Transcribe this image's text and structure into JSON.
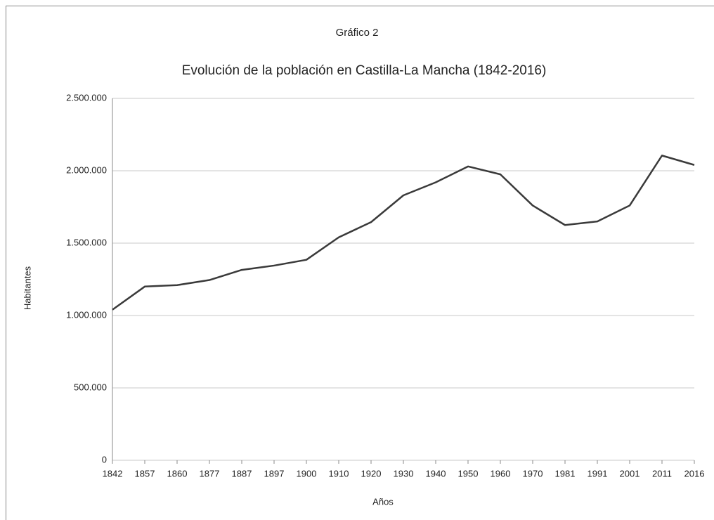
{
  "chart_data": {
    "type": "line",
    "subtitle": "Gráfico 2",
    "title": "Evolución de la población en Castilla-La Mancha (1842-2016)",
    "x_label": "Años",
    "y_label": "Habitantes",
    "categories": [
      "1842",
      "1857",
      "1860",
      "1877",
      "1887",
      "1897",
      "1900",
      "1910",
      "1920",
      "1930",
      "1940",
      "1950",
      "1960",
      "1970",
      "1981",
      "1991",
      "2001",
      "2011",
      "2016"
    ],
    "series": [
      {
        "name": "Habitantes",
        "color": "#3a3a3a",
        "values": [
          1040000,
          1200000,
          1210000,
          1245000,
          1315000,
          1345000,
          1385000,
          1540000,
          1645000,
          1830000,
          1920000,
          2030000,
          1975000,
          1760000,
          1625000,
          1650000,
          1760000,
          2105000,
          2040000
        ]
      }
    ],
    "ylim": [
      0,
      2500000
    ],
    "yticks": [
      0,
      {
        "value": 500000,
        "label": "500.000"
      },
      {
        "value": 1000000,
        "label": "1.000.000"
      },
      {
        "value": 1500000,
        "label": "1.500.000"
      },
      {
        "value": 2000000,
        "label": "2.000.000"
      },
      {
        "value": 2500000,
        "label": "2.500.000"
      }
    ],
    "grid": true
  }
}
